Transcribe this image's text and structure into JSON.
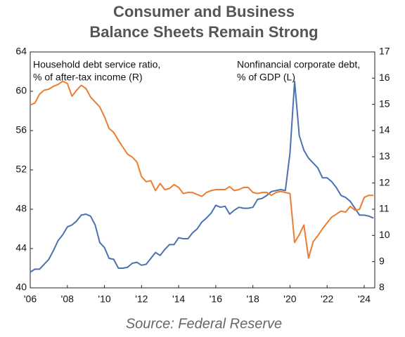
{
  "chart_data": {
    "type": "line",
    "title": [
      "Consumer and Business",
      "Balance Sheets Remain Strong"
    ],
    "source": "Source: Federal Reserve",
    "annotations": [
      {
        "text": [
          "Household debt service ratio,",
          "% of after-tax income (R)"
        ]
      },
      {
        "text": [
          "Nonfinancial corporate debt,",
          "% of GDP (L)"
        ]
      }
    ],
    "x": [
      2006,
      2006.25,
      2006.5,
      2006.75,
      2007,
      2007.25,
      2007.5,
      2007.75,
      2008,
      2008.25,
      2008.5,
      2008.75,
      2009,
      2009.25,
      2009.5,
      2009.75,
      2010,
      2010.25,
      2010.5,
      2010.75,
      2011,
      2011.25,
      2011.5,
      2011.75,
      2012,
      2012.25,
      2012.5,
      2012.75,
      2013,
      2013.25,
      2013.5,
      2013.75,
      2014,
      2014.25,
      2014.5,
      2014.75,
      2015,
      2015.25,
      2015.5,
      2015.75,
      2016,
      2016.25,
      2016.5,
      2016.75,
      2017,
      2017.25,
      2017.5,
      2017.75,
      2018,
      2018.25,
      2018.5,
      2018.75,
      2019,
      2019.25,
      2019.5,
      2019.75,
      2020,
      2020.25,
      2020.5,
      2020.75,
      2021,
      2021.25,
      2021.5,
      2021.75,
      2022,
      2022.25,
      2022.5,
      2022.75,
      2023,
      2023.25,
      2023.5,
      2023.75,
      2024,
      2024.25,
      2024.5
    ],
    "series": [
      {
        "color": "#4a72b0",
        "axis": "y",
        "values": [
          41.6,
          41.9,
          41.9,
          42.4,
          42.9,
          43.8,
          44.8,
          45.4,
          46.2,
          46.4,
          46.8,
          47.4,
          47.5,
          47.3,
          46.4,
          44.6,
          44.1,
          43.0,
          42.9,
          42.0,
          42.0,
          42.1,
          42.5,
          42.6,
          42.3,
          42.4,
          43.0,
          43.6,
          43.3,
          43.9,
          44.4,
          44.4,
          45.1,
          45.0,
          45.0,
          45.6,
          46.0,
          46.7,
          47.1,
          47.6,
          48.4,
          48.2,
          48.3,
          47.5,
          47.9,
          48.2,
          48.1,
          48.1,
          48.2,
          49.0,
          49.1,
          49.4,
          49.8,
          49.9,
          50.0,
          49.9,
          53.7,
          61.0,
          55.5,
          54.0,
          53.2,
          52.7,
          52.2,
          51.2,
          51.2,
          50.8,
          50.2,
          49.4,
          49.2,
          48.8,
          48.1,
          47.4,
          47.4,
          47.3,
          47.1
        ]
      },
      {
        "color": "#ed7d31",
        "axis": "y2",
        "values": [
          14.98,
          15.05,
          15.39,
          15.54,
          15.58,
          15.69,
          15.76,
          15.88,
          15.8,
          15.31,
          15.54,
          15.73,
          15.61,
          15.28,
          15.09,
          14.9,
          14.53,
          14.08,
          13.93,
          13.63,
          13.36,
          13.1,
          12.99,
          12.8,
          12.24,
          12.05,
          12.09,
          11.71,
          11.98,
          11.75,
          11.79,
          11.94,
          11.83,
          11.6,
          11.64,
          11.64,
          11.56,
          11.49,
          11.64,
          11.71,
          11.75,
          11.75,
          11.75,
          11.86,
          11.71,
          11.75,
          11.83,
          11.83,
          11.64,
          11.6,
          11.64,
          11.64,
          11.53,
          11.64,
          11.68,
          11.64,
          11.6,
          9.73,
          10.03,
          10.4,
          9.13,
          9.76,
          9.99,
          10.25,
          10.48,
          10.7,
          10.81,
          10.93,
          10.89,
          11.11,
          10.96,
          11.0,
          11.45,
          11.53,
          11.53
        ]
      }
    ],
    "xlim": [
      2006,
      2024.57
    ],
    "xticks": [
      {
        "value": 2006,
        "label": "'06"
      },
      {
        "value": 2008,
        "label": "'08"
      },
      {
        "value": 2010,
        "label": "'10"
      },
      {
        "value": 2012,
        "label": "'12"
      },
      {
        "value": 2014,
        "label": "'14"
      },
      {
        "value": 2016,
        "label": "'16"
      },
      {
        "value": 2018,
        "label": "'18"
      },
      {
        "value": 2020,
        "label": "'20"
      },
      {
        "value": 2022,
        "label": "'22"
      },
      {
        "value": 2024,
        "label": "'24"
      }
    ],
    "ylim": [
      40,
      64
    ],
    "yticks": [
      40,
      44,
      48,
      52,
      56,
      60,
      64
    ],
    "y2lim": [
      8,
      17
    ],
    "y2ticks": [
      8,
      9,
      10,
      11,
      12,
      13,
      14,
      15,
      16,
      17
    ]
  }
}
